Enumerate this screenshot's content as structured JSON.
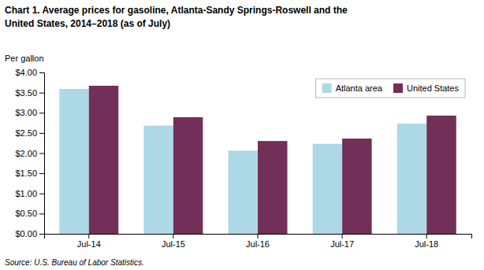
{
  "chart_data": {
    "type": "bar",
    "title": "Chart 1.  Average prices for gasoline, Atlanta-Sandy  Springs-Roswell and the",
    "subtitle": "United States, 2014–2018 (as of July)",
    "y_label": "Per gallon",
    "annotations": [
      "Source: U.S. Bureau of Labor Statistics."
    ],
    "categories": [
      "Jul-14",
      "Jul-15",
      "Jul-16",
      "Jul-17",
      "Jul-18"
    ],
    "series": [
      {
        "name": "Atlanta area",
        "color": "#ADD8E6",
        "values": [
          3.59,
          2.68,
          2.06,
          2.23,
          2.73
        ]
      },
      {
        "name": "United States",
        "color": "#722F57",
        "values": [
          3.67,
          2.89,
          2.3,
          2.36,
          2.93
        ]
      }
    ],
    "ylim": [
      0,
      4.0
    ],
    "yticks": [
      {
        "value": 0.0,
        "label": "$0.00"
      },
      {
        "value": 0.5,
        "label": "$0.50"
      },
      {
        "value": 1.0,
        "label": "$1.00"
      },
      {
        "value": 1.5,
        "label": "$1.50"
      },
      {
        "value": 2.0,
        "label": "$2.00"
      },
      {
        "value": 2.5,
        "label": "$2.50"
      },
      {
        "value": 3.0,
        "label": "$3.00"
      },
      {
        "value": 3.5,
        "label": "$3.50"
      },
      {
        "value": 4.0,
        "label": "$4.00"
      }
    ],
    "grid": false,
    "legend": "top-right"
  }
}
